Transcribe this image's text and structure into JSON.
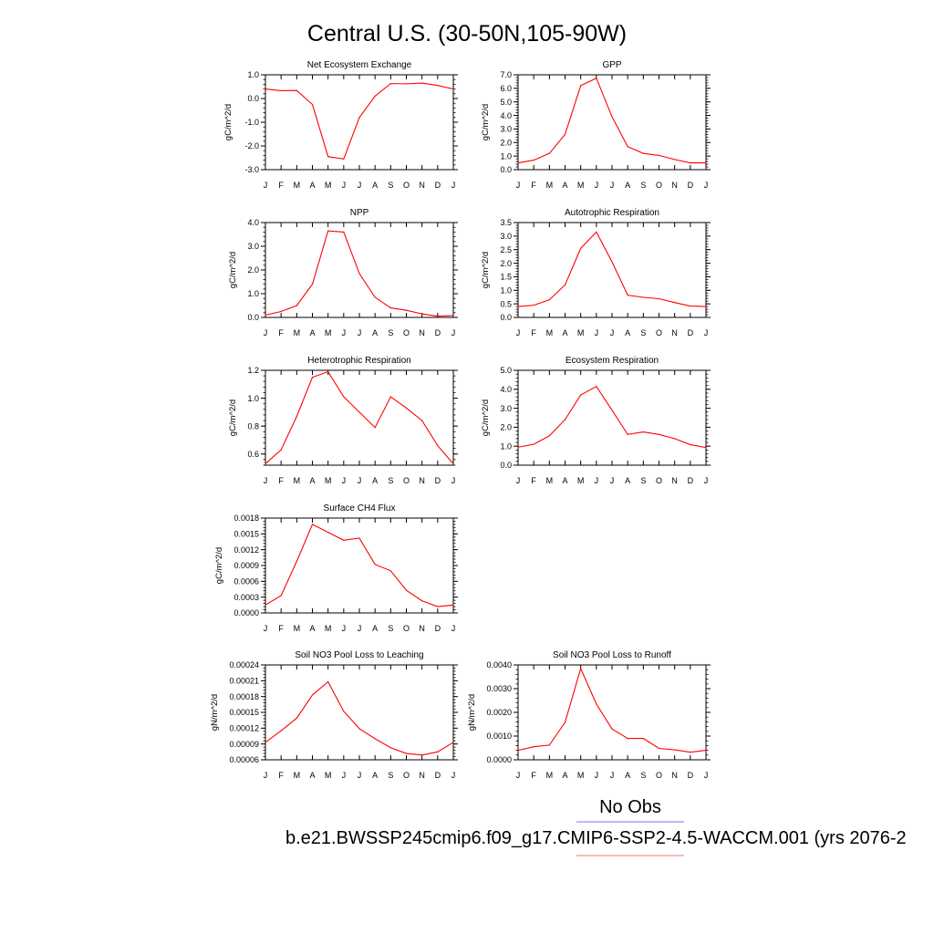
{
  "figure": {
    "title": "Central U.S. (30-50N,105-90W)",
    "legend": [
      {
        "label": "No Obs",
        "color": "#7777ee"
      },
      {
        "label": "b.e21.BWSSP245cmip6.f09_g17.CMIP6-SSP2-4.5-WACCM.001 (yrs 2076-2",
        "color": "#ee7777"
      }
    ]
  },
  "chart_data": [
    {
      "type": "line",
      "title": "Net Ecosystem Exchange",
      "ylabel": "gC/m^2/d",
      "categories": [
        "J",
        "F",
        "M",
        "A",
        "M",
        "J",
        "J",
        "A",
        "S",
        "O",
        "N",
        "D",
        "J"
      ],
      "ylim": [
        -3.0,
        1.0
      ],
      "yticks": [
        -3.0,
        -2.0,
        -1.0,
        0.0,
        1.0
      ],
      "ytick_labels": [
        "-3.0",
        "-2.0",
        "-1.0",
        "0.0",
        "1.0"
      ],
      "series": [
        {
          "color": "#ff0000",
          "values": [
            0.4,
            0.33,
            0.34,
            -0.25,
            -2.45,
            -2.55,
            -0.8,
            0.1,
            0.63,
            0.62,
            0.65,
            0.55,
            0.4
          ]
        }
      ]
    },
    {
      "type": "line",
      "title": "GPP",
      "ylabel": "gC/m^2/d",
      "categories": [
        "J",
        "F",
        "M",
        "A",
        "M",
        "J",
        "J",
        "A",
        "S",
        "O",
        "N",
        "D",
        "J"
      ],
      "ylim": [
        0.0,
        7.0
      ],
      "yticks": [
        0,
        1,
        2,
        3,
        4,
        5,
        6,
        7
      ],
      "ytick_labels": [
        "0.0",
        "1.0",
        "2.0",
        "3.0",
        "4.0",
        "5.0",
        "6.0",
        "7.0"
      ],
      "series": [
        {
          "color": "#ff0000",
          "values": [
            0.5,
            0.7,
            1.2,
            2.6,
            6.2,
            6.75,
            3.9,
            1.7,
            1.2,
            1.05,
            0.75,
            0.5,
            0.5
          ]
        }
      ]
    },
    {
      "type": "line",
      "title": "NPP",
      "ylabel": "gC/m^2/d",
      "categories": [
        "J",
        "F",
        "M",
        "A",
        "M",
        "J",
        "J",
        "A",
        "S",
        "O",
        "N",
        "D",
        "J"
      ],
      "ylim": [
        0.0,
        4.0
      ],
      "yticks": [
        0,
        1,
        2,
        3,
        4
      ],
      "ytick_labels": [
        "0.0",
        "1.0",
        "2.0",
        "3.0",
        "4.0"
      ],
      "series": [
        {
          "color": "#ff0000",
          "values": [
            0.1,
            0.25,
            0.5,
            1.4,
            3.65,
            3.6,
            1.85,
            0.85,
            0.4,
            0.3,
            0.15,
            0.05,
            0.08
          ]
        }
      ]
    },
    {
      "type": "line",
      "title": "Autotrophic Respiration",
      "ylabel": "gC/m^2/d",
      "categories": [
        "J",
        "F",
        "M",
        "A",
        "M",
        "J",
        "J",
        "A",
        "S",
        "O",
        "N",
        "D",
        "J"
      ],
      "ylim": [
        0.0,
        3.5
      ],
      "yticks": [
        0,
        0.5,
        1.0,
        1.5,
        2.0,
        2.5,
        3.0,
        3.5
      ],
      "ytick_labels": [
        "0.0",
        "0.5",
        "1.0",
        "1.5",
        "2.0",
        "2.5",
        "3.0",
        "3.5"
      ],
      "series": [
        {
          "color": "#ff0000",
          "values": [
            0.4,
            0.45,
            0.65,
            1.2,
            2.55,
            3.15,
            2.05,
            0.82,
            0.74,
            0.69,
            0.55,
            0.42,
            0.4
          ]
        }
      ]
    },
    {
      "type": "line",
      "title": "Heterotrophic Respiration",
      "ylabel": "gC/m^2/d",
      "categories": [
        "J",
        "F",
        "M",
        "A",
        "M",
        "J",
        "J",
        "A",
        "S",
        "O",
        "N",
        "D",
        "J"
      ],
      "ylim": [
        0.52,
        1.2
      ],
      "yticks": [
        0.6,
        0.8,
        1.0,
        1.2
      ],
      "ytick_labels": [
        "0.6",
        "0.8",
        "1.0",
        "1.2"
      ],
      "series": [
        {
          "color": "#ff0000",
          "values": [
            0.53,
            0.63,
            0.87,
            1.15,
            1.19,
            1.01,
            0.9,
            0.79,
            1.01,
            0.93,
            0.84,
            0.66,
            0.53
          ]
        }
      ]
    },
    {
      "type": "line",
      "title": "Ecosystem Respiration",
      "ylabel": "gC/m^2/d",
      "categories": [
        "J",
        "F",
        "M",
        "A",
        "M",
        "J",
        "J",
        "A",
        "S",
        "O",
        "N",
        "D",
        "J"
      ],
      "ylim": [
        0.0,
        5.0
      ],
      "yticks": [
        0,
        1,
        2,
        3,
        4,
        5
      ],
      "ytick_labels": [
        "0.0",
        "1.0",
        "2.0",
        "3.0",
        "4.0",
        "5.0"
      ],
      "series": [
        {
          "color": "#ff0000",
          "values": [
            0.95,
            1.1,
            1.55,
            2.4,
            3.7,
            4.15,
            2.9,
            1.62,
            1.75,
            1.62,
            1.4,
            1.08,
            0.93
          ]
        }
      ]
    },
    {
      "type": "line",
      "title": "Surface CH4 Flux",
      "ylabel": "gC/m^2/d",
      "categories": [
        "J",
        "F",
        "M",
        "A",
        "M",
        "J",
        "J",
        "A",
        "S",
        "O",
        "N",
        "D",
        "J"
      ],
      "ylim": [
        0.0,
        0.0018
      ],
      "yticks": [
        0,
        0.0003,
        0.0006,
        0.0009,
        0.0012,
        0.0015,
        0.0018
      ],
      "ytick_labels": [
        "0.0000",
        "0.0003",
        "0.0006",
        "0.0009",
        "0.0012",
        "0.0015",
        "0.0018"
      ],
      "series": [
        {
          "color": "#ff0000",
          "values": [
            0.00015,
            0.00033,
            0.00098,
            0.00168,
            0.00153,
            0.00138,
            0.00142,
            0.00092,
            0.0008,
            0.00043,
            0.00023,
            0.00012,
            0.00015
          ]
        }
      ]
    },
    {
      "type": "line",
      "title": "Soil NO3 Pool Loss to Leaching",
      "ylabel": "gN/m^2/d",
      "categories": [
        "J",
        "F",
        "M",
        "A",
        "M",
        "J",
        "J",
        "A",
        "S",
        "O",
        "N",
        "D",
        "J"
      ],
      "ylim": [
        6e-05,
        0.00024
      ],
      "yticks": [
        6e-05,
        9e-05,
        0.00012,
        0.00015,
        0.00018,
        0.00021,
        0.00024
      ],
      "ytick_labels": [
        "0.00006",
        "0.00009",
        "0.00012",
        "0.00015",
        "0.00018",
        "0.00021",
        "0.00024"
      ],
      "series": [
        {
          "color": "#ff0000",
          "values": [
            9.3e-05,
            0.000115,
            0.000139,
            0.000183,
            0.000208,
            0.000152,
            0.000119,
            0.0001,
            8.3e-05,
            7.2e-05,
            6.9e-05,
            7.5e-05,
            9.3e-05
          ]
        }
      ]
    },
    {
      "type": "line",
      "title": "Soil NO3 Pool Loss to Runoff",
      "ylabel": "gN/m^2/d",
      "categories": [
        "J",
        "F",
        "M",
        "A",
        "M",
        "J",
        "J",
        "A",
        "S",
        "O",
        "N",
        "D",
        "J"
      ],
      "ylim": [
        0.0,
        0.004
      ],
      "yticks": [
        0,
        0.001,
        0.002,
        0.003,
        0.004
      ],
      "ytick_labels": [
        "0.0000",
        "0.0010",
        "0.0020",
        "0.0030",
        "0.0040"
      ],
      "series": [
        {
          "color": "#ff0000",
          "values": [
            0.0004,
            0.00055,
            0.00062,
            0.00158,
            0.00385,
            0.00235,
            0.0013,
            0.0009,
            0.0009,
            0.00048,
            0.00042,
            0.00032,
            0.0004
          ]
        }
      ]
    }
  ]
}
